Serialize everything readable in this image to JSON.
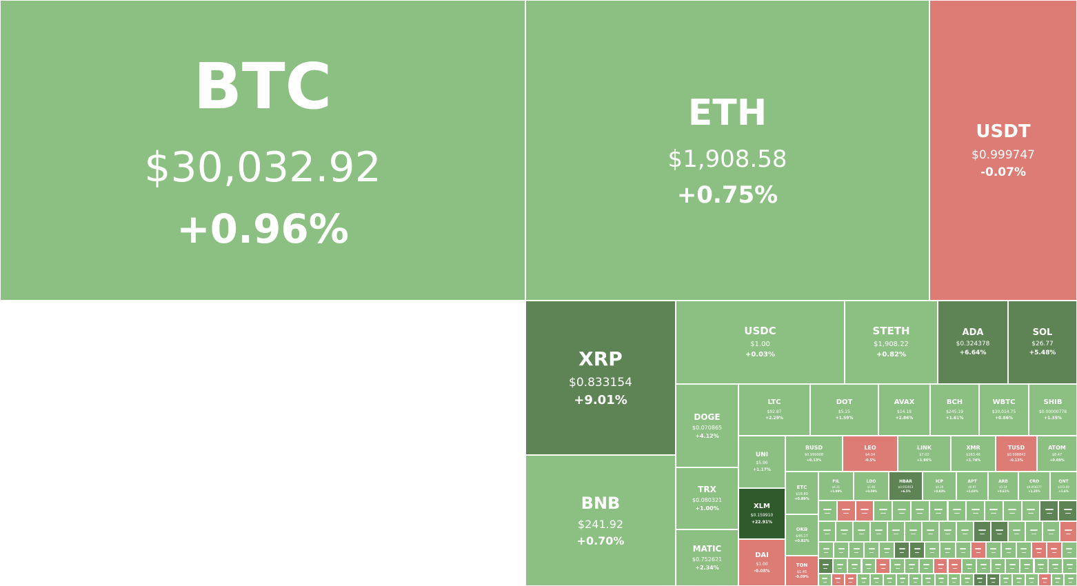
{
  "colors": {
    "up_light": "#8cbf82",
    "up_medium": "#5e8456",
    "up_strong": "#2f5a2b",
    "down_light": "#dd7b75",
    "border": "#ffffff"
  },
  "chart_data": {
    "type": "treemap",
    "title": "",
    "tiles": [
      {
        "symbol": "BTC",
        "price": "$30,032.92",
        "change": "+0.96%",
        "change_pct": 0.96
      },
      {
        "symbol": "ETH",
        "price": "$1,908.58",
        "change": "+0.75%",
        "change_pct": 0.75
      },
      {
        "symbol": "USDT",
        "price": "$0.999747",
        "change": "-0.07%",
        "change_pct": -0.07
      },
      {
        "symbol": "XRP",
        "price": "$0.833154",
        "change": "+9.01%",
        "change_pct": 9.01
      },
      {
        "symbol": "USDC",
        "price": "$1.00",
        "change": "+0.03%",
        "change_pct": 0.03
      },
      {
        "symbol": "STETH",
        "price": "$1,908.22",
        "change": "+0.82%",
        "change_pct": 0.82
      },
      {
        "symbol": "ADA",
        "price": "$0.324378",
        "change": "+6.64%",
        "change_pct": 6.64
      },
      {
        "symbol": "SOL",
        "price": "$26.77",
        "change": "+5.48%",
        "change_pct": 5.48
      },
      {
        "symbol": "BNB",
        "price": "$241.92",
        "change": "+0.70%",
        "change_pct": 0.7
      },
      {
        "symbol": "DOGE",
        "price": "$0.070865",
        "change": "+4.12%",
        "change_pct": 4.12
      },
      {
        "symbol": "TRX",
        "price": "$0.080321",
        "change": "+1.00%",
        "change_pct": 1.0
      },
      {
        "symbol": "MATIC",
        "price": "$0.752621",
        "change": "+2.34%",
        "change_pct": 2.34
      },
      {
        "symbol": "LTC",
        "price": "$92.87",
        "change": "+2.29%",
        "change_pct": 2.29
      },
      {
        "symbol": "DOT",
        "price": "$5.25",
        "change": "+1.59%",
        "change_pct": 1.59
      },
      {
        "symbol": "AVAX",
        "price": "$14.19",
        "change": "+2.86%",
        "change_pct": 2.86
      },
      {
        "symbol": "BCH",
        "price": "$245.19",
        "change": "+1.61%",
        "change_pct": 1.61
      },
      {
        "symbol": "WBTC",
        "price": "$30,014.75",
        "change": "+0.86%",
        "change_pct": 0.86
      },
      {
        "symbol": "SHIB",
        "price": "$0.00000778",
        "change": "+1.35%",
        "change_pct": 1.35
      },
      {
        "symbol": "UNI",
        "price": "$5.96",
        "change": "+1.17%",
        "change_pct": 1.17
      },
      {
        "symbol": "BUSD",
        "price": "$0.999908",
        "change": "+0.13%",
        "change_pct": 0.13
      },
      {
        "symbol": "LEO",
        "price": "$4.04",
        "change": "-0.5%",
        "change_pct": -0.5
      },
      {
        "symbol": "LINK",
        "price": "$7.02",
        "change": "+1.96%",
        "change_pct": 1.96
      },
      {
        "symbol": "XMR",
        "price": "$163.46",
        "change": "+1.74%",
        "change_pct": 1.74
      },
      {
        "symbol": "TUSD",
        "price": "$0.998842",
        "change": "-0.13%",
        "change_pct": -0.13
      },
      {
        "symbol": "ATOM",
        "price": "$8.47",
        "change": "+0.69%",
        "change_pct": 0.69
      },
      {
        "symbol": "XLM",
        "price": "$0.159910",
        "change": "+22.91%",
        "change_pct": 22.91
      },
      {
        "symbol": "ETC",
        "price": "$18.89",
        "change": "+0.89%",
        "change_pct": 0.89
      },
      {
        "symbol": "OKB",
        "price": "$46.17",
        "change": "+0.82%",
        "change_pct": 0.82
      },
      {
        "symbol": "DAI",
        "price": "$1.00",
        "change": "-0.08%",
        "change_pct": -0.08
      },
      {
        "symbol": "TON",
        "price": "$1.45",
        "change": "-0.09%",
        "change_pct": -0.09
      },
      {
        "symbol": "FIL",
        "price": "$4.31",
        "change": "+1.09%",
        "change_pct": 1.09
      },
      {
        "symbol": "LDO",
        "price": "$1.96",
        "change": "+0.59%",
        "change_pct": 0.59
      },
      {
        "symbol": "HBAR",
        "price": "$0.052913",
        "change": "+6.5%",
        "change_pct": 6.5
      },
      {
        "symbol": "ICP",
        "price": "$4.26",
        "change": "+0.83%",
        "change_pct": 0.83
      },
      {
        "symbol": "APT",
        "price": "$6.97",
        "change": "+1.03%",
        "change_pct": 1.03
      },
      {
        "symbol": "ARB",
        "price": "$1.14",
        "change": "+0.61%",
        "change_pct": 0.61
      },
      {
        "symbol": "CRO",
        "price": "$0.058377",
        "change": "+1.35%",
        "change_pct": 1.35
      },
      {
        "symbol": "QNT",
        "price": "$103.69",
        "change": "+1.6%",
        "change_pct": 1.6
      }
    ]
  }
}
